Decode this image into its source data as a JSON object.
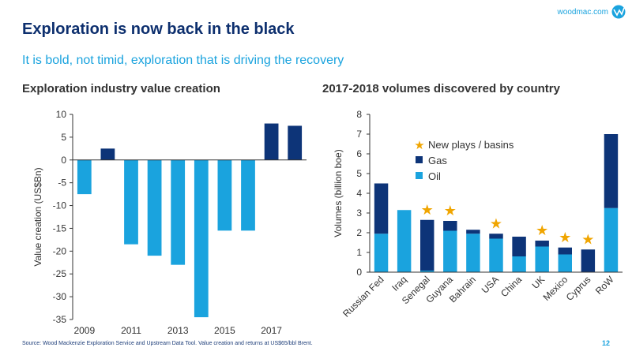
{
  "header": {
    "brand": "woodmac.com",
    "title": "Exploration is now back in the black",
    "subtitle": "It is bold, not timid, exploration that is driving the recovery"
  },
  "footer": {
    "source": "Source:  Wood Mackenzie  Exploration Service  and Upstream Data Tool. Value creation and returns at US$65/bbl Brent.",
    "page": "12"
  },
  "colors": {
    "dark": "#0d3478",
    "light": "#1aa3de",
    "star": "#f0a500",
    "title": "#0d2f6e"
  },
  "chart_data": [
    {
      "type": "bar",
      "title": "Exploration industry value creation",
      "ylabel": "Value creation (US$Bn)",
      "ylim": [
        -35,
        10
      ],
      "yticks": [
        10,
        5,
        0,
        -5,
        -10,
        -15,
        -20,
        -25,
        -30,
        -35
      ],
      "xtick_labels": [
        "2009",
        "2011",
        "2013",
        "2015",
        "2017"
      ],
      "categories": [
        "2009",
        "2010",
        "2011",
        "2012",
        "2013",
        "2014",
        "2015",
        "2016",
        "2017",
        "2018"
      ],
      "values": [
        -7.5,
        2.5,
        -18.5,
        -21,
        -23,
        -34.5,
        -15.5,
        -15.5,
        8,
        7.5
      ],
      "colors": [
        "light",
        "dark",
        "light",
        "light",
        "light",
        "light",
        "light",
        "light",
        "dark",
        "dark"
      ]
    },
    {
      "type": "bar",
      "stacked": true,
      "title": "2017-2018 volumes discovered by country",
      "ylabel": "Volumes (billion boe)",
      "ylim": [
        0,
        8
      ],
      "yticks": [
        0,
        1,
        2,
        3,
        4,
        5,
        6,
        7,
        8
      ],
      "categories": [
        "Russian Fed",
        "Iraq",
        "Senegal",
        "Guyana",
        "Bahrain",
        "USA",
        "China",
        "UK",
        "Mexico",
        "Cyprus",
        "RoW"
      ],
      "series": [
        {
          "name": "Oil",
          "color": "light",
          "values": [
            1.95,
            3.15,
            0.08,
            2.1,
            1.95,
            1.7,
            0.8,
            1.3,
            0.9,
            0.0,
            3.25
          ]
        },
        {
          "name": "Gas",
          "color": "dark",
          "values": [
            2.55,
            0.0,
            2.57,
            0.5,
            0.2,
            0.25,
            1.0,
            0.3,
            0.35,
            1.15,
            3.75
          ]
        }
      ],
      "new_plays": [
        "Senegal",
        "Guyana",
        "USA",
        "UK",
        "Mexico",
        "Cyprus"
      ],
      "legend": [
        {
          "label": "New plays / basins",
          "marker": "star"
        },
        {
          "label": "Gas",
          "marker": "dark"
        },
        {
          "label": "Oil",
          "marker": "light"
        }
      ]
    }
  ]
}
